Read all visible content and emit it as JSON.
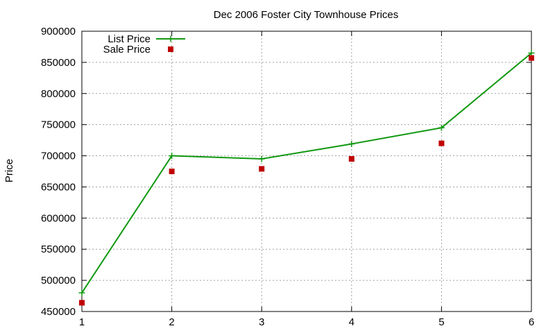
{
  "chart_data": {
    "type": "line",
    "title": "Dec 2006 Foster City Townhouse Prices",
    "xlabel": "",
    "ylabel": "Price",
    "x": [
      1,
      2,
      3,
      4,
      5,
      6
    ],
    "xlim": [
      1,
      6
    ],
    "ylim": [
      450000,
      900000
    ],
    "xticks": [
      "1",
      "2",
      "3",
      "4",
      "5",
      "6"
    ],
    "yticks": [
      "450000",
      "500000",
      "550000",
      "600000",
      "650000",
      "700000",
      "750000",
      "800000",
      "850000",
      "900000"
    ],
    "grid": true,
    "legend_position": "top-left",
    "series": [
      {
        "name": "List Price",
        "style": "linespoints",
        "marker": "plus",
        "color": "#109810",
        "values": [
          480000,
          700000,
          695000,
          719000,
          745000,
          865000
        ]
      },
      {
        "name": "Sale Price",
        "style": "points",
        "marker": "square",
        "color": "#c00000",
        "values": [
          464000,
          675000,
          679000,
          695000,
          720000,
          857000
        ]
      }
    ]
  }
}
